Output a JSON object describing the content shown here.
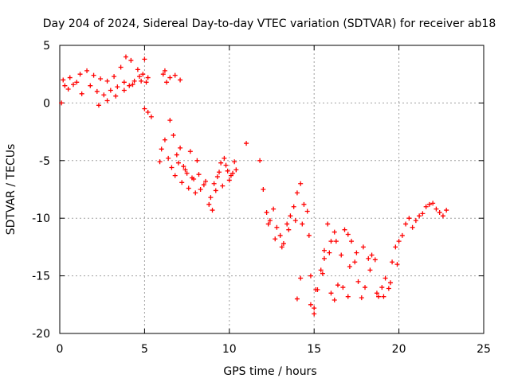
{
  "chart_data": {
    "type": "scatter",
    "title": "Day 204 of 2024, Sidereal Day-to-day VTEC variation (SDTVAR) for receiver ab18",
    "xlabel": "GPS time / hours",
    "ylabel": "SDTVAR / TECUs",
    "xlim": [
      0,
      25
    ],
    "ylim": [
      -20,
      5
    ],
    "xticks": [
      0,
      5,
      10,
      15,
      20,
      25
    ],
    "yticks": [
      -20,
      -15,
      -10,
      -5,
      0,
      5
    ],
    "xtick_labels": [
      "0",
      "5",
      "10",
      "15",
      "20",
      "25"
    ],
    "ytick_labels": [
      "-20",
      "-15",
      "-10",
      "-5",
      "0",
      "5"
    ],
    "grid": true,
    "marker": "+",
    "series_color": "#ff0000",
    "series": [
      {
        "name": "SDTVAR",
        "x": [
          0.1,
          0.3,
          0.6,
          1.0,
          1.2,
          1.6,
          2.0,
          2.4,
          2.8,
          3.2,
          3.6,
          3.9,
          4.2,
          4.6,
          4.9,
          5.0,
          0.2,
          0.5,
          0.8,
          1.3,
          1.8,
          2.2,
          2.6,
          3.0,
          3.4,
          3.8,
          4.1,
          4.4,
          4.7,
          5.1,
          2.3,
          2.8,
          3.3,
          3.8,
          4.3,
          4.8,
          5.2,
          5.0,
          5.2,
          5.4,
          5.9,
          6.0,
          6.2,
          6.4,
          6.6,
          6.8,
          7.0,
          7.2,
          7.4,
          7.6,
          7.8,
          8.0,
          8.2,
          8.5,
          8.8,
          9.0,
          9.2,
          9.4,
          9.6,
          9.8,
          10.0,
          10.2,
          10.4,
          6.1,
          6.3,
          6.5,
          6.7,
          6.9,
          7.1,
          7.3,
          7.5,
          7.7,
          7.9,
          8.1,
          8.3,
          8.6,
          8.9,
          9.1,
          9.3,
          9.5,
          9.7,
          9.9,
          10.1,
          10.3,
          6.2,
          6.5,
          6.8,
          7.1,
          11.0,
          11.8,
          12.0,
          12.2,
          12.4,
          12.6,
          12.8,
          13.0,
          13.2,
          13.4,
          13.6,
          13.8,
          14.0,
          14.2,
          14.4,
          14.6,
          14.8,
          15.0,
          15.2,
          15.4,
          15.6,
          15.8,
          16.0,
          16.2,
          16.4,
          16.6,
          16.8,
          17.0,
          17.2,
          17.4,
          17.6,
          17.8,
          18.0,
          18.2,
          18.4,
          18.6,
          18.8,
          19.0,
          19.2,
          19.4,
          19.6,
          19.8,
          20.0,
          20.2,
          20.4,
          20.6,
          20.8,
          21.0,
          21.2,
          21.4,
          21.6,
          21.8,
          22.0,
          22.2,
          22.4,
          22.6,
          22.8,
          12.3,
          12.7,
          13.1,
          13.5,
          13.9,
          14.3,
          14.7,
          15.1,
          15.5,
          15.9,
          16.3,
          16.7,
          17.1,
          17.5,
          17.9,
          18.3,
          18.7,
          19.1,
          19.5,
          19.9,
          14.0,
          14.2,
          14.8,
          15.0,
          15.6,
          16.0,
          16.2,
          17.0
        ],
        "y": [
          0,
          1.5,
          2.2,
          1.8,
          2.5,
          2.8,
          2.4,
          2.1,
          1.9,
          2.3,
          3.1,
          4.0,
          3.7,
          2.9,
          2.5,
          3.8,
          2.0,
          1.2,
          1.6,
          0.8,
          1.5,
          1.0,
          0.7,
          1.1,
          1.4,
          1.8,
          1.5,
          1.9,
          2.3,
          1.8,
          -0.2,
          0.2,
          0.6,
          1.1,
          1.6,
          1.9,
          2.2,
          -0.5,
          -0.8,
          -1.2,
          -5.1,
          -4.0,
          -3.2,
          -4.8,
          -5.6,
          -6.3,
          -5.2,
          -6.9,
          -5.8,
          -7.4,
          -6.5,
          -7.8,
          -6.2,
          -7.1,
          -8.8,
          -9.3,
          -7.6,
          -6.0,
          -7.2,
          -5.4,
          -6.7,
          -6.1,
          -5.8,
          2.5,
          1.8,
          -1.5,
          -2.8,
          -4.5,
          -3.9,
          -5.5,
          -6.1,
          -4.2,
          -6.6,
          -5.0,
          -7.5,
          -6.8,
          -8.2,
          -7.0,
          -6.4,
          -5.2,
          -4.8,
          -5.9,
          -6.3,
          -5.1,
          2.8,
          2.2,
          2.4,
          2.0,
          -3.5,
          -5.0,
          -7.5,
          -9.5,
          -10.2,
          -9.2,
          -10.8,
          -11.5,
          -12.2,
          -10.5,
          -9.8,
          -9.0,
          -7.8,
          -7.0,
          -8.8,
          -9.4,
          -15.0,
          -17.8,
          -16.2,
          -14.5,
          -12.8,
          -10.5,
          -16.5,
          -17.1,
          -15.8,
          -13.2,
          -11.0,
          -11.4,
          -12.0,
          -13.8,
          -15.5,
          -16.9,
          -16.0,
          -13.5,
          -13.2,
          -13.6,
          -16.8,
          -16.0,
          -15.2,
          -16.1,
          -13.8,
          -12.5,
          -12.0,
          -11.5,
          -10.5,
          -10.0,
          -10.8,
          -10.2,
          -9.8,
          -9.6,
          -9.0,
          -8.8,
          -8.7,
          -9.2,
          -9.5,
          -9.8,
          -9.3,
          -10.5,
          -11.8,
          -12.5,
          -11.0,
          -10.2,
          -10.5,
          -11.5,
          -16.2,
          -14.8,
          -13.0,
          -12.0,
          -16.0,
          -14.2,
          -13.0,
          -12.5,
          -14.5,
          -16.5,
          -16.8,
          -15.6,
          -14.0,
          -17.0,
          -15.2,
          -17.5,
          -18.3,
          -13.5,
          -12.0,
          -11.2,
          -16.8
        ]
      }
    ]
  }
}
